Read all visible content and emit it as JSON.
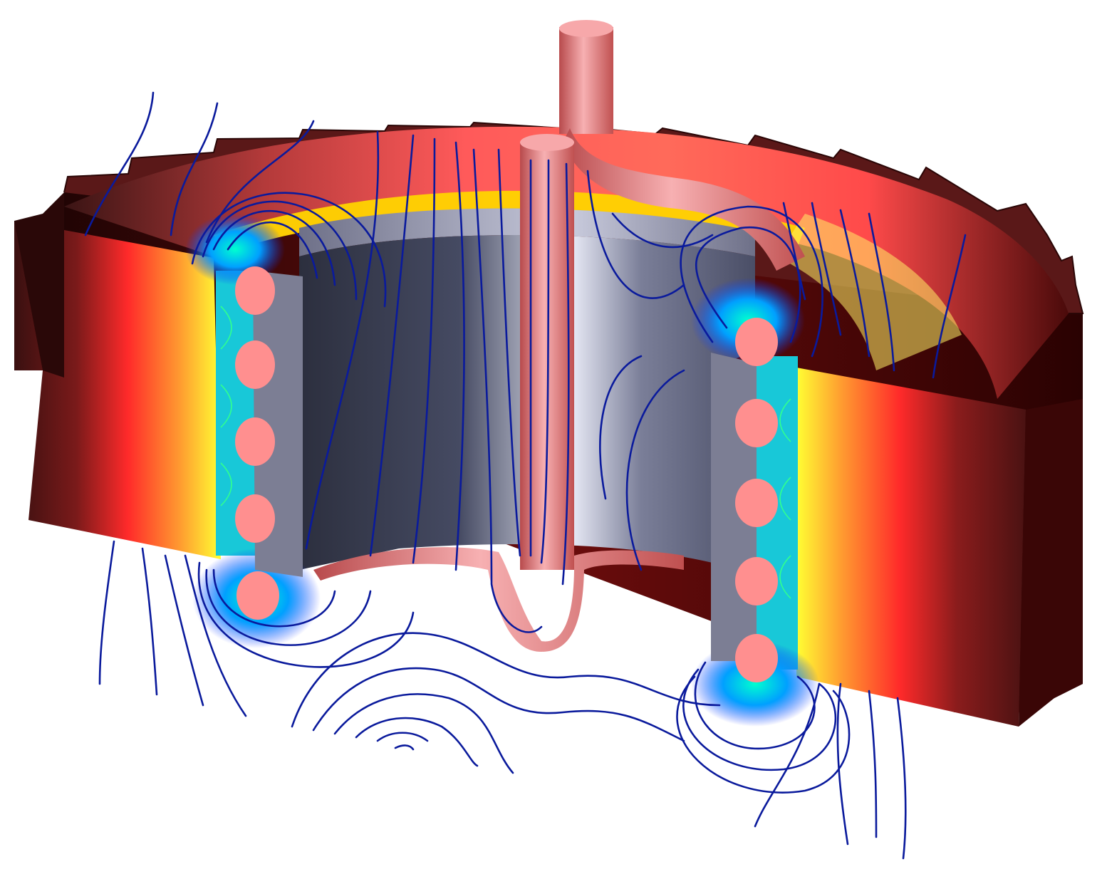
{
  "scene": {
    "description_free": true,
    "colors": {
      "background": "#ffffff",
      "field_line": "#0a1a9c",
      "ring_dark": "#3a0606",
      "ring_red": "#ff2a2a",
      "ring_yellow": "#ffff33",
      "crucible_gray": "#5c5f77",
      "crucible_light": "#e6e8f4",
      "coil_tube_pink": "#f08a8c",
      "coil_circle_pink": "#ff8f8f"
    },
    "parts": {
      "left_coil_turns": 5,
      "right_coil_turns": 5,
      "gear_teeth_visible": 22
    }
  }
}
